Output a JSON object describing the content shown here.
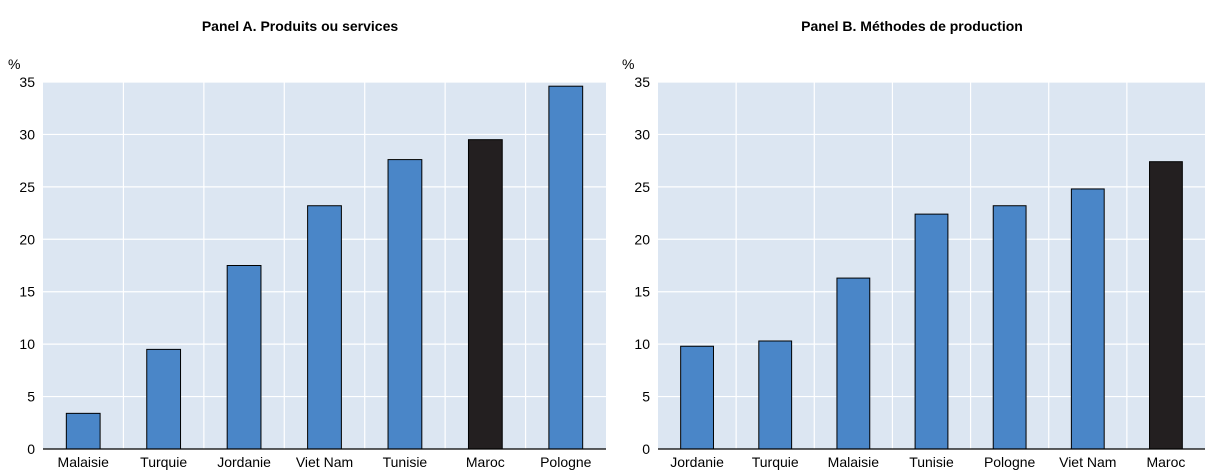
{
  "chart_data": [
    {
      "type": "bar",
      "title": "Panel A. Produits ou services",
      "ylabel": "%",
      "ylim": [
        0,
        35
      ],
      "yticks": [
        0,
        5,
        10,
        15,
        20,
        25,
        30,
        35
      ],
      "grid": true,
      "categories": [
        "Malaisie",
        "Turquie",
        "Jordanie",
        "Viet Nam",
        "Tunisie",
        "Maroc",
        "Pologne"
      ],
      "values": [
        3.4,
        9.5,
        17.5,
        23.2,
        27.6,
        29.5,
        34.6
      ],
      "colors": [
        "#4a86c8",
        "#4a86c8",
        "#4a86c8",
        "#4a86c8",
        "#4a86c8",
        "#231f20",
        "#4a86c8"
      ]
    },
    {
      "type": "bar",
      "title": "Panel B. Méthodes de production",
      "ylabel": "%",
      "ylim": [
        0,
        35
      ],
      "yticks": [
        0,
        5,
        10,
        15,
        20,
        25,
        30,
        35
      ],
      "grid": true,
      "categories": [
        "Jordanie",
        "Turquie",
        "Malaisie",
        "Tunisie",
        "Pologne",
        "Viet Nam",
        "Maroc"
      ],
      "values": [
        9.8,
        10.3,
        16.3,
        22.4,
        23.2,
        24.8,
        27.4
      ],
      "colors": [
        "#4a86c8",
        "#4a86c8",
        "#4a86c8",
        "#4a86c8",
        "#4a86c8",
        "#4a86c8",
        "#231f20"
      ]
    }
  ],
  "palette": {
    "plot_bg": "#dce6f2",
    "grid": "#ffffff",
    "bar_stroke": "#000000"
  }
}
